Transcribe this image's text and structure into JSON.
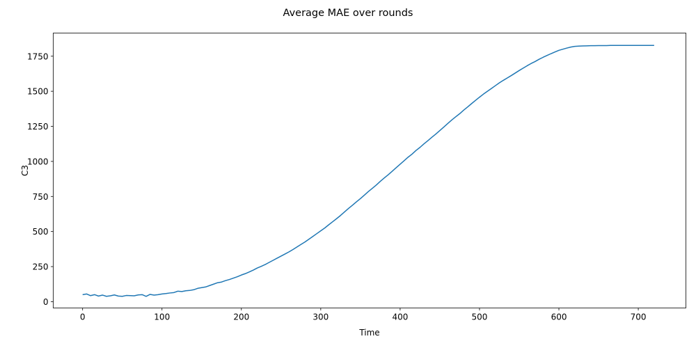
{
  "chart_data": {
    "type": "line",
    "title": "Average MAE over rounds",
    "xlabel": "Time",
    "ylabel": "C3",
    "xlim": [
      -37,
      760
    ],
    "ylim": [
      -45,
      1915
    ],
    "xticks": [
      0,
      100,
      200,
      300,
      400,
      500,
      600,
      700
    ],
    "yticks": [
      0,
      250,
      500,
      750,
      1000,
      1250,
      1500,
      1750
    ],
    "grid": false,
    "legend": "none",
    "series": [
      {
        "color": "#1f77b4",
        "x": [
          0,
          5,
          10,
          15,
          20,
          25,
          30,
          35,
          40,
          45,
          50,
          55,
          60,
          65,
          70,
          75,
          80,
          85,
          90,
          95,
          100,
          105,
          110,
          115,
          120,
          125,
          130,
          135,
          140,
          145,
          150,
          155,
          160,
          165,
          170,
          175,
          180,
          185,
          190,
          195,
          200,
          205,
          210,
          215,
          220,
          225,
          230,
          235,
          240,
          245,
          250,
          255,
          260,
          265,
          270,
          275,
          280,
          285,
          290,
          295,
          300,
          305,
          310,
          315,
          320,
          325,
          330,
          335,
          340,
          345,
          350,
          355,
          360,
          365,
          370,
          375,
          380,
          385,
          390,
          395,
          400,
          405,
          410,
          415,
          420,
          425,
          430,
          435,
          440,
          445,
          450,
          455,
          460,
          465,
          470,
          475,
          480,
          485,
          490,
          495,
          500,
          505,
          510,
          515,
          520,
          525,
          530,
          535,
          540,
          545,
          550,
          555,
          560,
          565,
          570,
          575,
          580,
          585,
          590,
          595,
          600,
          605,
          610,
          615,
          620,
          625,
          630,
          635,
          640,
          645,
          650,
          655,
          660,
          665,
          670,
          675,
          680,
          685,
          690,
          695,
          700,
          705,
          710,
          715,
          720
        ],
        "y": [
          50,
          55,
          43,
          50,
          40,
          47,
          38,
          42,
          48,
          40,
          38,
          44,
          43,
          42,
          48,
          50,
          38,
          52,
          47,
          50,
          55,
          58,
          62,
          65,
          75,
          72,
          78,
          80,
          85,
          95,
          100,
          105,
          115,
          125,
          135,
          140,
          150,
          158,
          168,
          178,
          190,
          200,
          212,
          225,
          240,
          252,
          265,
          280,
          295,
          310,
          325,
          340,
          355,
          372,
          390,
          408,
          425,
          445,
          465,
          485,
          505,
          525,
          548,
          570,
          592,
          615,
          640,
          665,
          688,
          712,
          735,
          760,
          785,
          808,
          832,
          858,
          882,
          905,
          930,
          955,
          980,
          1005,
          1030,
          1052,
          1078,
          1100,
          1125,
          1148,
          1172,
          1195,
          1220,
          1245,
          1270,
          1295,
          1318,
          1340,
          1365,
          1388,
          1412,
          1435,
          1458,
          1480,
          1500,
          1520,
          1540,
          1560,
          1578,
          1595,
          1612,
          1630,
          1648,
          1665,
          1682,
          1698,
          1712,
          1728,
          1742,
          1755,
          1768,
          1780,
          1792,
          1800,
          1808,
          1815,
          1820,
          1822,
          1823,
          1824,
          1825,
          1825,
          1826,
          1826,
          1826,
          1827,
          1827,
          1827,
          1827,
          1827,
          1827,
          1827,
          1827,
          1827,
          1827,
          1827,
          1827
        ]
      }
    ]
  }
}
